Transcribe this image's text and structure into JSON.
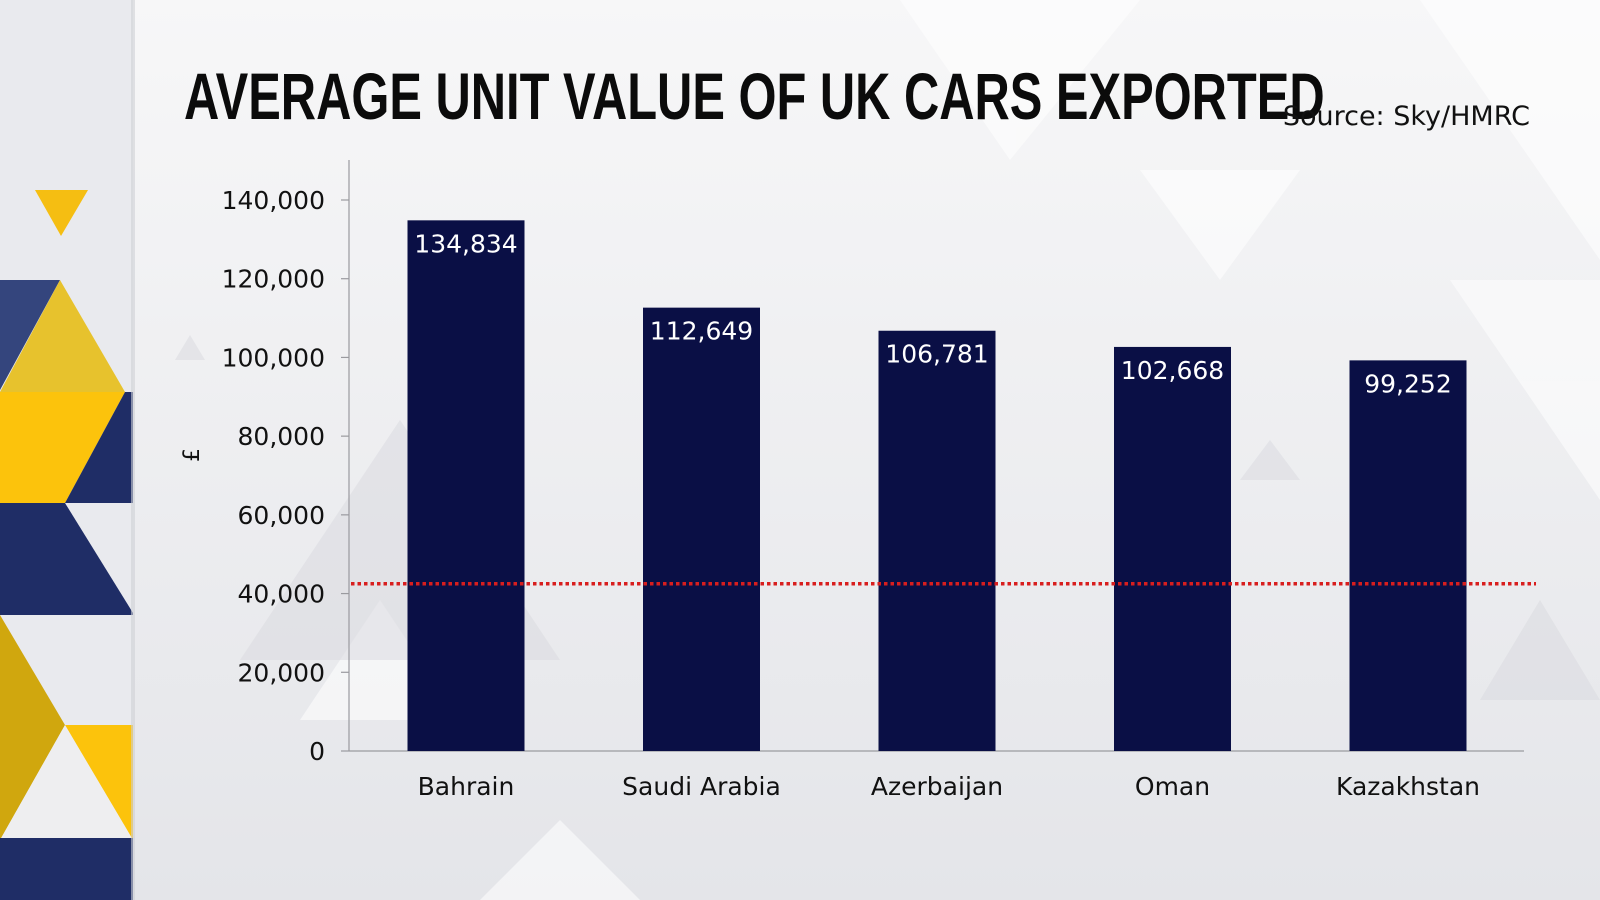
{
  "title": "AVERAGE UNIT VALUE OF UK CARS EXPORTED",
  "source": "Source: Sky/HMRC",
  "colors": {
    "bar": "#0a0f45",
    "reference_line": "#d81e1e",
    "panel_navy": "#1f2d66",
    "panel_yellow": "#f5be12"
  },
  "chart_data": {
    "type": "bar",
    "title": "AVERAGE UNIT VALUE OF UK CARS EXPORTED",
    "xlabel": "",
    "ylabel": "£",
    "ylim": [
      0,
      140000
    ],
    "yticks": [
      "0",
      "20,000",
      "40,000",
      "60,000",
      "80,000",
      "100,000",
      "120,000",
      "140,000"
    ],
    "ytick_values": [
      0,
      20000,
      40000,
      60000,
      80000,
      100000,
      120000,
      140000
    ],
    "categories": [
      "Bahrain",
      "Saudi Arabia",
      "Azerbaijan",
      "Oman",
      "Kazakhstan"
    ],
    "values": [
      134834,
      112649,
      106781,
      102668,
      99252
    ],
    "data_labels": [
      "134,834",
      "112,649",
      "106,781",
      "102,668",
      "99,252"
    ],
    "reference_line": {
      "value": 42500,
      "style": "dotted"
    },
    "grid": false,
    "legend": "none"
  }
}
